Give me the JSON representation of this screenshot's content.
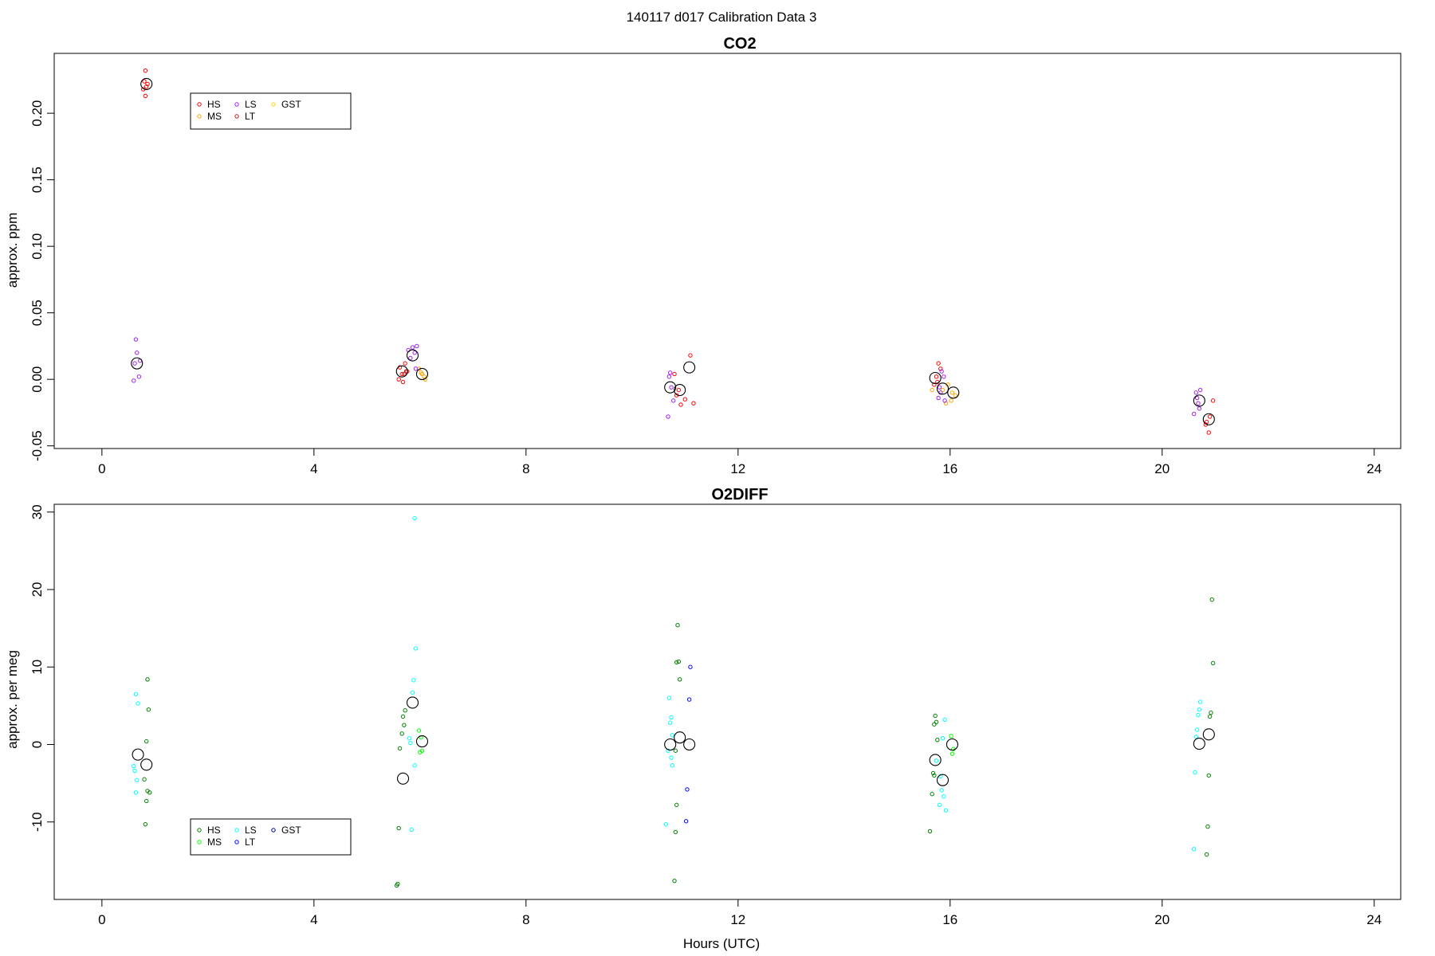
{
  "figure": {
    "title": "140117   d017   Calibration Data 3",
    "xlabel": "Hours (UTC)"
  },
  "chart_data": [
    {
      "type": "scatter",
      "title": "CO2",
      "xlabel": "",
      "ylabel": "approx. ppm",
      "xlim": [
        -0.9,
        24.5
      ],
      "ylim": [
        -0.052,
        0.245
      ],
      "xticks": [
        0,
        4,
        8,
        12,
        16,
        20,
        24
      ],
      "yticks": [
        -0.05,
        0.0,
        0.05,
        0.1,
        0.15,
        0.2
      ],
      "ytick_labels": [
        "-0.05",
        "0.00",
        "0.05",
        "0.10",
        "0.15",
        "0.20"
      ],
      "grid": false,
      "legend_placement": "top-left",
      "legend": [
        {
          "name": "HS",
          "color": "#ff0000"
        },
        {
          "name": "MS",
          "color": "#ffa500"
        },
        {
          "name": "LS",
          "color": "#a020f0"
        },
        {
          "name": "LT",
          "color": "#b22222"
        },
        {
          "name": "GST",
          "color": "#ffd700"
        }
      ],
      "series": [
        {
          "name": "HS",
          "color": "#ff0000",
          "points": [
            [
              0.82,
              0.232
            ],
            [
              0.8,
              0.224
            ],
            [
              0.86,
              0.222
            ],
            [
              0.78,
              0.218
            ],
            [
              0.84,
              0.22
            ],
            [
              0.82,
              0.213
            ],
            [
              5.62,
              0.009
            ],
            [
              5.66,
              0.004
            ],
            [
              5.72,
              0.012
            ],
            [
              5.6,
              0.0
            ],
            [
              5.68,
              -0.002
            ],
            [
              5.76,
              0.006
            ],
            [
              10.8,
              0.004
            ],
            [
              10.88,
              -0.008
            ],
            [
              10.92,
              -0.019
            ],
            [
              10.84,
              -0.012
            ],
            [
              11.0,
              -0.015
            ],
            [
              11.1,
              0.018
            ],
            [
              11.16,
              -0.018
            ],
            [
              15.74,
              0.002
            ],
            [
              15.78,
              0.012
            ],
            [
              15.7,
              -0.004
            ],
            [
              15.82,
              0.008
            ],
            [
              15.76,
              -0.002
            ],
            [
              20.84,
              -0.032
            ],
            [
              20.9,
              -0.028
            ],
            [
              20.96,
              -0.016
            ],
            [
              20.88,
              -0.04
            ],
            [
              20.82,
              -0.034
            ]
          ]
        },
        {
          "name": "MS",
          "color": "#ffa500",
          "points": [
            [
              6.02,
              0.005
            ],
            [
              6.08,
              0.002
            ],
            [
              5.98,
              0.008
            ],
            [
              6.1,
              0.0
            ],
            [
              6.04,
              0.004
            ],
            [
              15.86,
              -0.008
            ],
            [
              16.02,
              -0.016
            ],
            [
              15.96,
              -0.004
            ],
            [
              16.1,
              -0.012
            ],
            [
              15.92,
              -0.018
            ],
            [
              15.66,
              -0.008
            ],
            [
              16.04,
              -0.01
            ]
          ]
        },
        {
          "name": "LS",
          "color": "#a020f0",
          "points": [
            [
              0.64,
              0.03
            ],
            [
              0.66,
              0.02
            ],
            [
              0.62,
              0.012
            ],
            [
              0.72,
              0.014
            ],
            [
              0.7,
              0.002
            ],
            [
              0.6,
              -0.001
            ],
            [
              5.86,
              0.024
            ],
            [
              5.9,
              0.02
            ],
            [
              5.82,
              0.016
            ],
            [
              5.78,
              0.022
            ],
            [
              5.94,
              0.025
            ],
            [
              5.92,
              0.008
            ],
            [
              10.7,
              0.002
            ],
            [
              10.74,
              -0.006
            ],
            [
              10.78,
              -0.016
            ],
            [
              10.68,
              -0.028
            ],
            [
              10.72,
              0.005
            ],
            [
              15.84,
              0.006
            ],
            [
              15.88,
              0.002
            ],
            [
              15.82,
              -0.01
            ],
            [
              15.9,
              -0.016
            ],
            [
              15.8,
              -0.006
            ],
            [
              15.78,
              -0.014
            ],
            [
              20.64,
              -0.01
            ],
            [
              20.72,
              -0.008
            ],
            [
              20.66,
              -0.014
            ],
            [
              20.7,
              -0.022
            ],
            [
              20.6,
              -0.026
            ],
            [
              20.68,
              -0.018
            ]
          ]
        },
        {
          "name": "LT",
          "color": "#b22222",
          "points": [
            [
              5.7,
              0.004
            ],
            [
              5.74,
              0.006
            ]
          ]
        },
        {
          "name": "GST",
          "color": "#ffd700",
          "points": []
        }
      ],
      "means": [
        [
          0.66,
          0.012
        ],
        [
          0.84,
          0.222
        ],
        [
          5.66,
          0.006
        ],
        [
          5.86,
          0.018
        ],
        [
          6.04,
          0.004
        ],
        [
          10.72,
          -0.006
        ],
        [
          10.9,
          -0.008
        ],
        [
          11.08,
          0.009
        ],
        [
          15.72,
          0.001
        ],
        [
          15.86,
          -0.007
        ],
        [
          16.06,
          -0.01
        ],
        [
          20.7,
          -0.016
        ],
        [
          20.88,
          -0.03
        ]
      ]
    },
    {
      "type": "scatter",
      "title": "O2DIFF",
      "xlabel": "Hours (UTC)",
      "ylabel": "approx. per meg",
      "xlim": [
        -0.9,
        24.5
      ],
      "ylim": [
        -20,
        31
      ],
      "xticks": [
        0,
        4,
        8,
        12,
        16,
        20,
        24
      ],
      "yticks": [
        -10,
        0,
        10,
        20,
        30
      ],
      "ytick_labels": [
        "-10",
        "0",
        "10",
        "20",
        "30"
      ],
      "grid": false,
      "legend_placement": "bottom-left",
      "legend": [
        {
          "name": "HS",
          "color": "#008000"
        },
        {
          "name": "MS",
          "color": "#00ff00"
        },
        {
          "name": "LS",
          "color": "#00ffff"
        },
        {
          "name": "LT",
          "color": "#0000ff"
        },
        {
          "name": "GST",
          "color": "#00008b"
        }
      ],
      "series": [
        {
          "name": "HS",
          "color": "#008000",
          "points": [
            [
              0.86,
              8.4
            ],
            [
              0.88,
              4.5
            ],
            [
              0.84,
              0.4
            ],
            [
              0.8,
              -4.5
            ],
            [
              0.86,
              -6.0
            ],
            [
              0.9,
              -6.2
            ],
            [
              0.84,
              -7.3
            ],
            [
              0.82,
              -10.3
            ],
            [
              5.72,
              4.4
            ],
            [
              5.68,
              3.6
            ],
            [
              5.7,
              2.5
            ],
            [
              5.66,
              1.4
            ],
            [
              5.62,
              -0.5
            ],
            [
              5.6,
              -10.8
            ],
            [
              5.58,
              -18.0
            ],
            [
              5.56,
              -18.2
            ],
            [
              10.86,
              15.4
            ],
            [
              10.88,
              10.7
            ],
            [
              10.84,
              10.6
            ],
            [
              10.9,
              8.4
            ],
            [
              10.82,
              -0.8
            ],
            [
              10.84,
              -7.8
            ],
            [
              10.82,
              -11.3
            ],
            [
              10.8,
              -17.6
            ],
            [
              15.72,
              3.7
            ],
            [
              15.74,
              2.9
            ],
            [
              15.7,
              2.6
            ],
            [
              15.76,
              0.6
            ],
            [
              15.68,
              -3.7
            ],
            [
              15.7,
              -4.0
            ],
            [
              15.66,
              -6.4
            ],
            [
              15.62,
              -11.2
            ],
            [
              20.94,
              18.7
            ],
            [
              20.96,
              10.5
            ],
            [
              20.92,
              4.1
            ],
            [
              20.9,
              3.6
            ],
            [
              20.88,
              -4.0
            ],
            [
              20.86,
              -10.6
            ],
            [
              20.84,
              -14.2
            ]
          ]
        },
        {
          "name": "MS",
          "color": "#00ff00",
          "points": [
            [
              5.98,
              1.8
            ],
            [
              6.02,
              0.9
            ],
            [
              6.04,
              -0.8
            ],
            [
              6.0,
              -1.0
            ],
            [
              16.02,
              1.1
            ],
            [
              16.06,
              -0.6
            ],
            [
              16.04,
              -1.2
            ]
          ]
        },
        {
          "name": "LS",
          "color": "#00ffff",
          "points": [
            [
              0.64,
              6.5
            ],
            [
              0.68,
              5.3
            ],
            [
              0.6,
              -2.8
            ],
            [
              0.62,
              -3.4
            ],
            [
              0.66,
              -4.6
            ],
            [
              0.64,
              -6.2
            ],
            [
              5.9,
              29.2
            ],
            [
              5.92,
              12.4
            ],
            [
              5.88,
              8.3
            ],
            [
              5.86,
              6.7
            ],
            [
              5.8,
              0.8
            ],
            [
              5.82,
              0.2
            ],
            [
              5.9,
              -2.7
            ],
            [
              5.84,
              -11.0
            ],
            [
              10.7,
              6.0
            ],
            [
              10.74,
              3.5
            ],
            [
              10.72,
              2.8
            ],
            [
              10.76,
              1.2
            ],
            [
              10.68,
              -0.8
            ],
            [
              10.74,
              -1.7
            ],
            [
              10.76,
              -2.7
            ],
            [
              10.64,
              -10.3
            ],
            [
              15.9,
              3.2
            ],
            [
              15.86,
              0.8
            ],
            [
              15.82,
              -4.1
            ],
            [
              15.84,
              -5.9
            ],
            [
              15.88,
              -6.7
            ],
            [
              15.92,
              -8.5
            ],
            [
              15.8,
              -7.8
            ],
            [
              15.74,
              -2.1
            ],
            [
              20.72,
              5.5
            ],
            [
              20.7,
              4.5
            ],
            [
              20.68,
              3.8
            ],
            [
              20.66,
              1.9
            ],
            [
              20.64,
              1.0
            ],
            [
              20.62,
              -3.6
            ],
            [
              20.6,
              -13.5
            ]
          ]
        },
        {
          "name": "LT",
          "color": "#0000ff",
          "points": [
            [
              11.1,
              10.0
            ],
            [
              11.08,
              5.8
            ],
            [
              11.04,
              -5.8
            ],
            [
              11.02,
              -9.9
            ]
          ]
        },
        {
          "name": "GST",
          "color": "#00008b",
          "points": []
        }
      ],
      "means": [
        [
          0.68,
          -1.3
        ],
        [
          0.84,
          -2.6
        ],
        [
          5.68,
          -4.4
        ],
        [
          5.86,
          5.4
        ],
        [
          6.04,
          0.4
        ],
        [
          10.72,
          0.0
        ],
        [
          10.9,
          0.9
        ],
        [
          11.08,
          0.0
        ],
        [
          15.72,
          -2.0
        ],
        [
          15.86,
          -4.6
        ],
        [
          16.04,
          0.0
        ],
        [
          20.7,
          0.1
        ],
        [
          20.88,
          1.3
        ]
      ]
    }
  ]
}
